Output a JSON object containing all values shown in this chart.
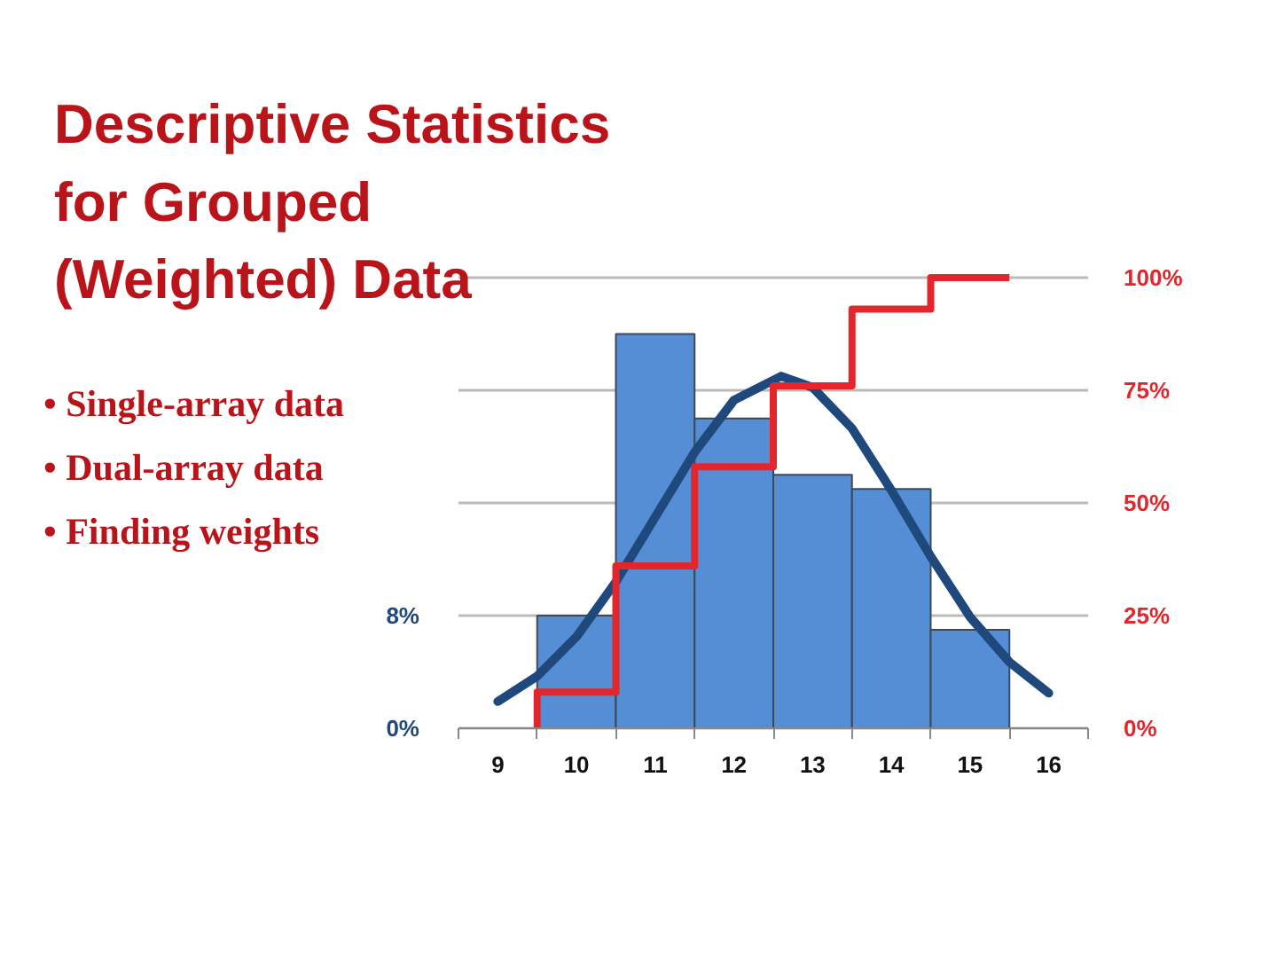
{
  "chart_data": {
    "type": "histogram",
    "title": "Descriptive Statistics\nfor Grouped\n(Weighted) Data",
    "annotations": [
      "• Single-array data",
      "• Dual-array data",
      "• Finding weights"
    ],
    "bins": [
      9.5,
      10.5,
      11.5,
      12.5,
      13.5,
      14.5,
      15.5
    ],
    "values": [
      8,
      28,
      22,
      18,
      17,
      7
    ],
    "color": "#558ed5",
    "series": [
      {
        "type": "line",
        "color": "#1f497d",
        "x": [
          9,
          9.5,
          10,
          10.5,
          11,
          11.5,
          12,
          12.6,
          13,
          13.5,
          14,
          14.5,
          15,
          15.5,
          16
        ],
        "values": [
          1.9,
          3.7,
          6.5,
          10.4,
          15.0,
          19.6,
          23.3,
          25.0,
          24.2,
          21.3,
          16.9,
          12.2,
          7.9,
          4.7,
          2.5
        ]
      },
      {
        "type": "step",
        "color": "#e3262c",
        "axis": "y2",
        "x": [
          9.5,
          9.5,
          10.5,
          11.5,
          12.5,
          13.5,
          14.5,
          15.5
        ],
        "values": [
          0,
          8,
          36,
          58,
          76,
          93,
          100,
          100
        ]
      }
    ],
    "xlim": [
      8.5,
      16.5
    ],
    "xticks": [
      {
        "value": 8.5,
        "label": null
      },
      9,
      {
        "value": 9.5,
        "label": null
      },
      10,
      {
        "value": 10.5,
        "label": null
      },
      11,
      {
        "value": 11.5,
        "label": null
      },
      12,
      {
        "value": 12.5,
        "label": null
      },
      13,
      {
        "value": 13.5,
        "label": null
      },
      14,
      {
        "value": 14.5,
        "label": null
      },
      15,
      {
        "value": 15.5,
        "label": null
      },
      16,
      {
        "value": 16.5,
        "label": null
      }
    ],
    "ylim": [
      0,
      32
    ],
    "yticks": [
      {
        "value": 0,
        "label": "0%"
      },
      {
        "value": 8,
        "label": "8%"
      },
      {
        "value": 16,
        "label": null
      },
      {
        "value": 24,
        "label": null
      },
      {
        "value": 32,
        "label": null
      }
    ],
    "y2lim": [
      0,
      100
    ],
    "y2ticks": [
      {
        "value": 0,
        "label": "0%"
      },
      {
        "value": 25,
        "label": "25%"
      },
      {
        "value": 50,
        "label": "50%"
      },
      {
        "value": 75,
        "label": "75%"
      },
      {
        "value": 100,
        "label": "100%"
      }
    ],
    "grid": "y"
  }
}
